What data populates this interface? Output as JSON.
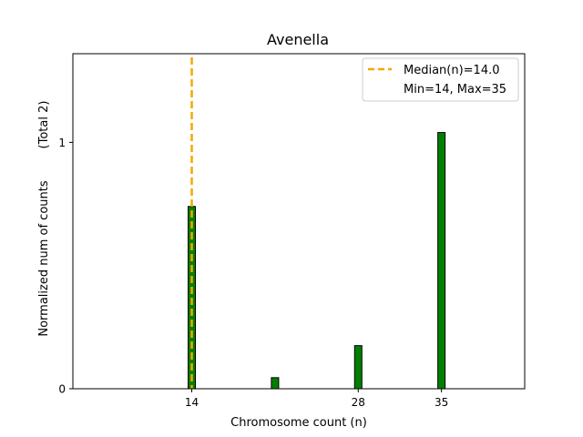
{
  "chart_data": {
    "type": "bar",
    "title": "Avenella",
    "xlabel": "Chromosome count (n)",
    "ylabel": "Normalized num of counts",
    "ylabel_extra": "(Total 2)",
    "xlim": [
      4,
      42
    ],
    "ylim": [
      0,
      1.36
    ],
    "xticks": [
      14,
      28,
      35
    ],
    "yticks": [
      0,
      1
    ],
    "ytick_overlay_labels": [
      "0",
      "1"
    ],
    "bar_color": "#008000",
    "bar_edge_color": "#000000",
    "bars": [
      {
        "x": 14,
        "value": 0.74
      },
      {
        "x": 21,
        "value": 0.045
      },
      {
        "x": 28,
        "value": 0.175
      },
      {
        "x": 35,
        "value": 1.04
      }
    ],
    "median_line": {
      "x": 14,
      "color": "#f2a900"
    },
    "legend": {
      "position": "top-right",
      "entries": [
        {
          "label": "Median(n)=14.0",
          "marker": "dashed-line",
          "color": "#f2a900"
        },
        {
          "label": "Min=14, Max=35",
          "marker": "none"
        }
      ]
    },
    "grid": false
  }
}
